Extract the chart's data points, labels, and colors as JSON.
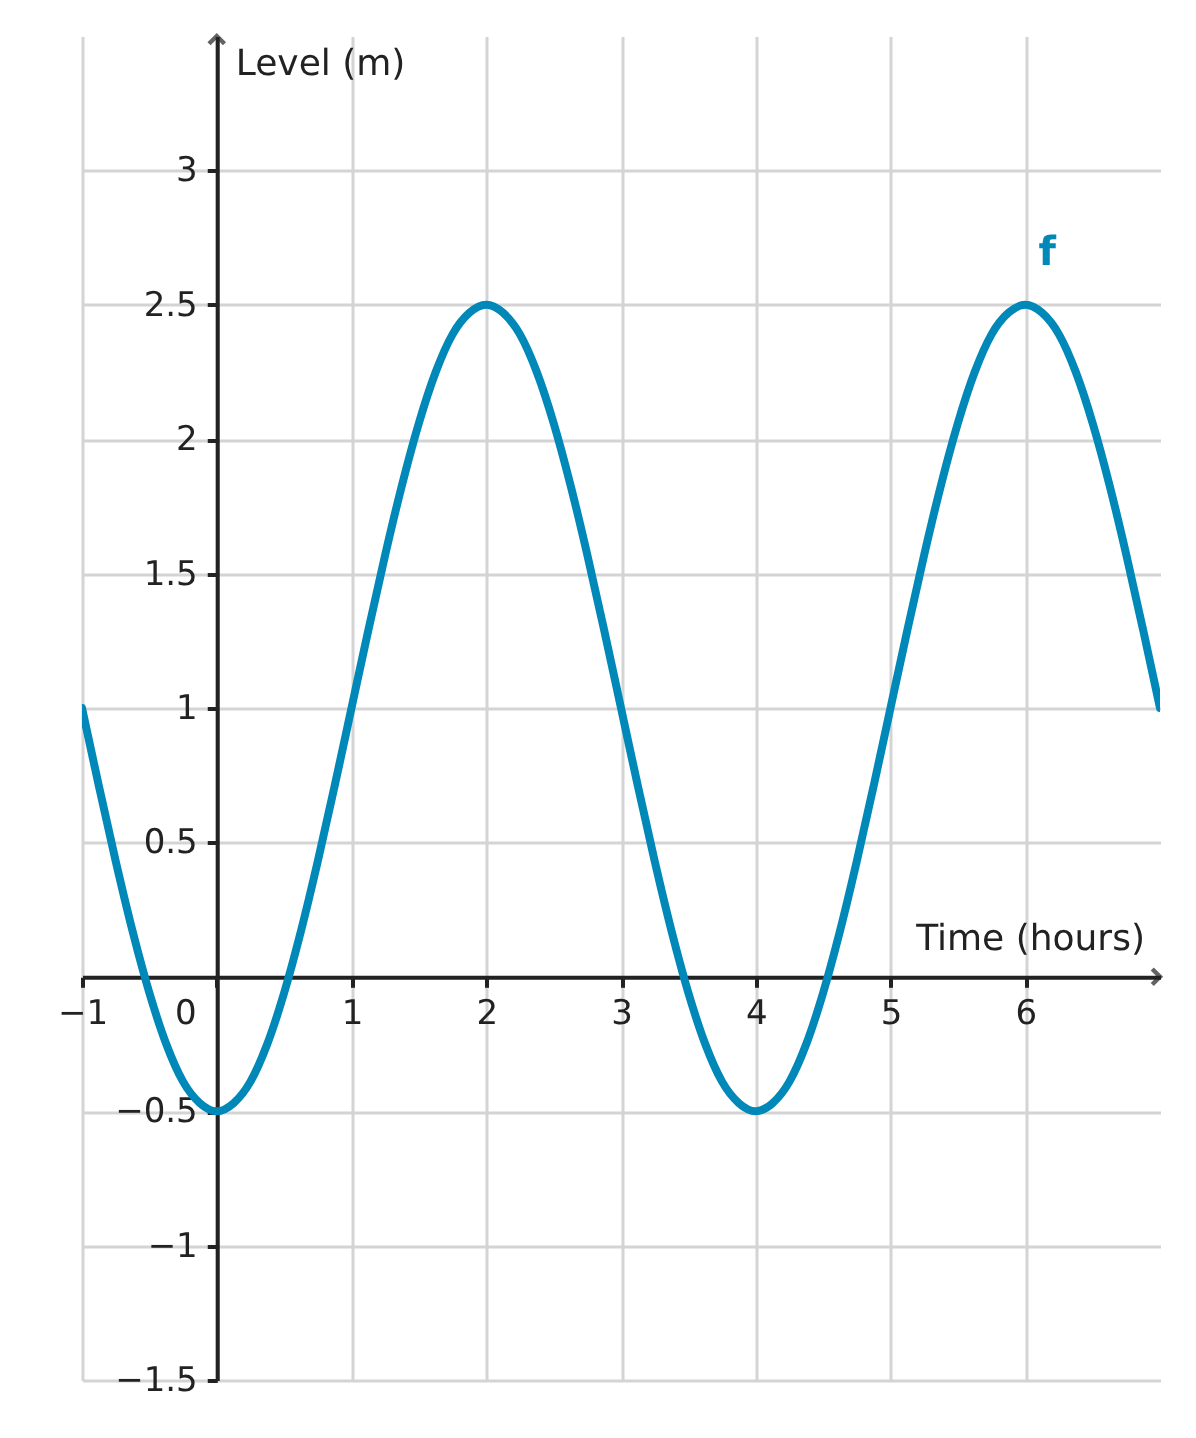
{
  "chart_data": {
    "type": "line",
    "xlabel": "Time (hours)",
    "ylabel": "Level (m)",
    "x": [
      -1,
      -0.875,
      -0.75,
      -0.625,
      -0.5,
      -0.375,
      -0.25,
      -0.125,
      0,
      0.125,
      0.25,
      0.375,
      0.5,
      0.625,
      0.75,
      0.875,
      1,
      1.125,
      1.25,
      1.375,
      1.5,
      1.625,
      1.75,
      1.875,
      2,
      2.125,
      2.25,
      2.375,
      2.5,
      2.625,
      2.75,
      2.875,
      3,
      3.125,
      3.25,
      3.375,
      3.5,
      3.625,
      3.75,
      3.875,
      4,
      4.125,
      4.25,
      4.375,
      4.5,
      4.625,
      4.75,
      4.875,
      5,
      5.125,
      5.25,
      5.375,
      5.5,
      5.625,
      5.75,
      5.875,
      6,
      6.125,
      6.25,
      6.375,
      6.5,
      6.625,
      6.75,
      6.875,
      7
    ],
    "series": [
      {
        "name": "f",
        "color": "#0088b8",
        "values": [
          1,
          0.71,
          0.43,
          0.17,
          -0.06,
          -0.25,
          -0.39,
          -0.47,
          -0.5,
          -0.47,
          -0.39,
          -0.25,
          -0.06,
          0.17,
          0.43,
          0.71,
          1,
          1.29,
          1.57,
          1.83,
          2.06,
          2.25,
          2.39,
          2.47,
          2.5,
          2.47,
          2.39,
          2.25,
          2.06,
          1.83,
          1.57,
          1.29,
          1,
          0.71,
          0.43,
          0.17,
          -0.06,
          -0.25,
          -0.39,
          -0.47,
          -0.5,
          -0.47,
          -0.39,
          -0.25,
          -0.06,
          0.17,
          0.43,
          0.71,
          1,
          1.29,
          1.57,
          1.83,
          2.06,
          2.25,
          2.39,
          2.47,
          2.5,
          2.47,
          2.39,
          2.25,
          2.06,
          1.83,
          1.57,
          1.29,
          1
        ]
      }
    ],
    "xlim": [
      -1,
      7
    ],
    "ylim": [
      -1.5,
      3.5
    ],
    "xticks": [
      -1,
      0,
      1,
      2,
      3,
      4,
      5,
      6
    ],
    "yticks": [
      -1.5,
      -1,
      -0.5,
      0.5,
      1,
      1.5,
      2,
      2.5,
      3
    ],
    "grid": true,
    "line_style": "solid"
  }
}
